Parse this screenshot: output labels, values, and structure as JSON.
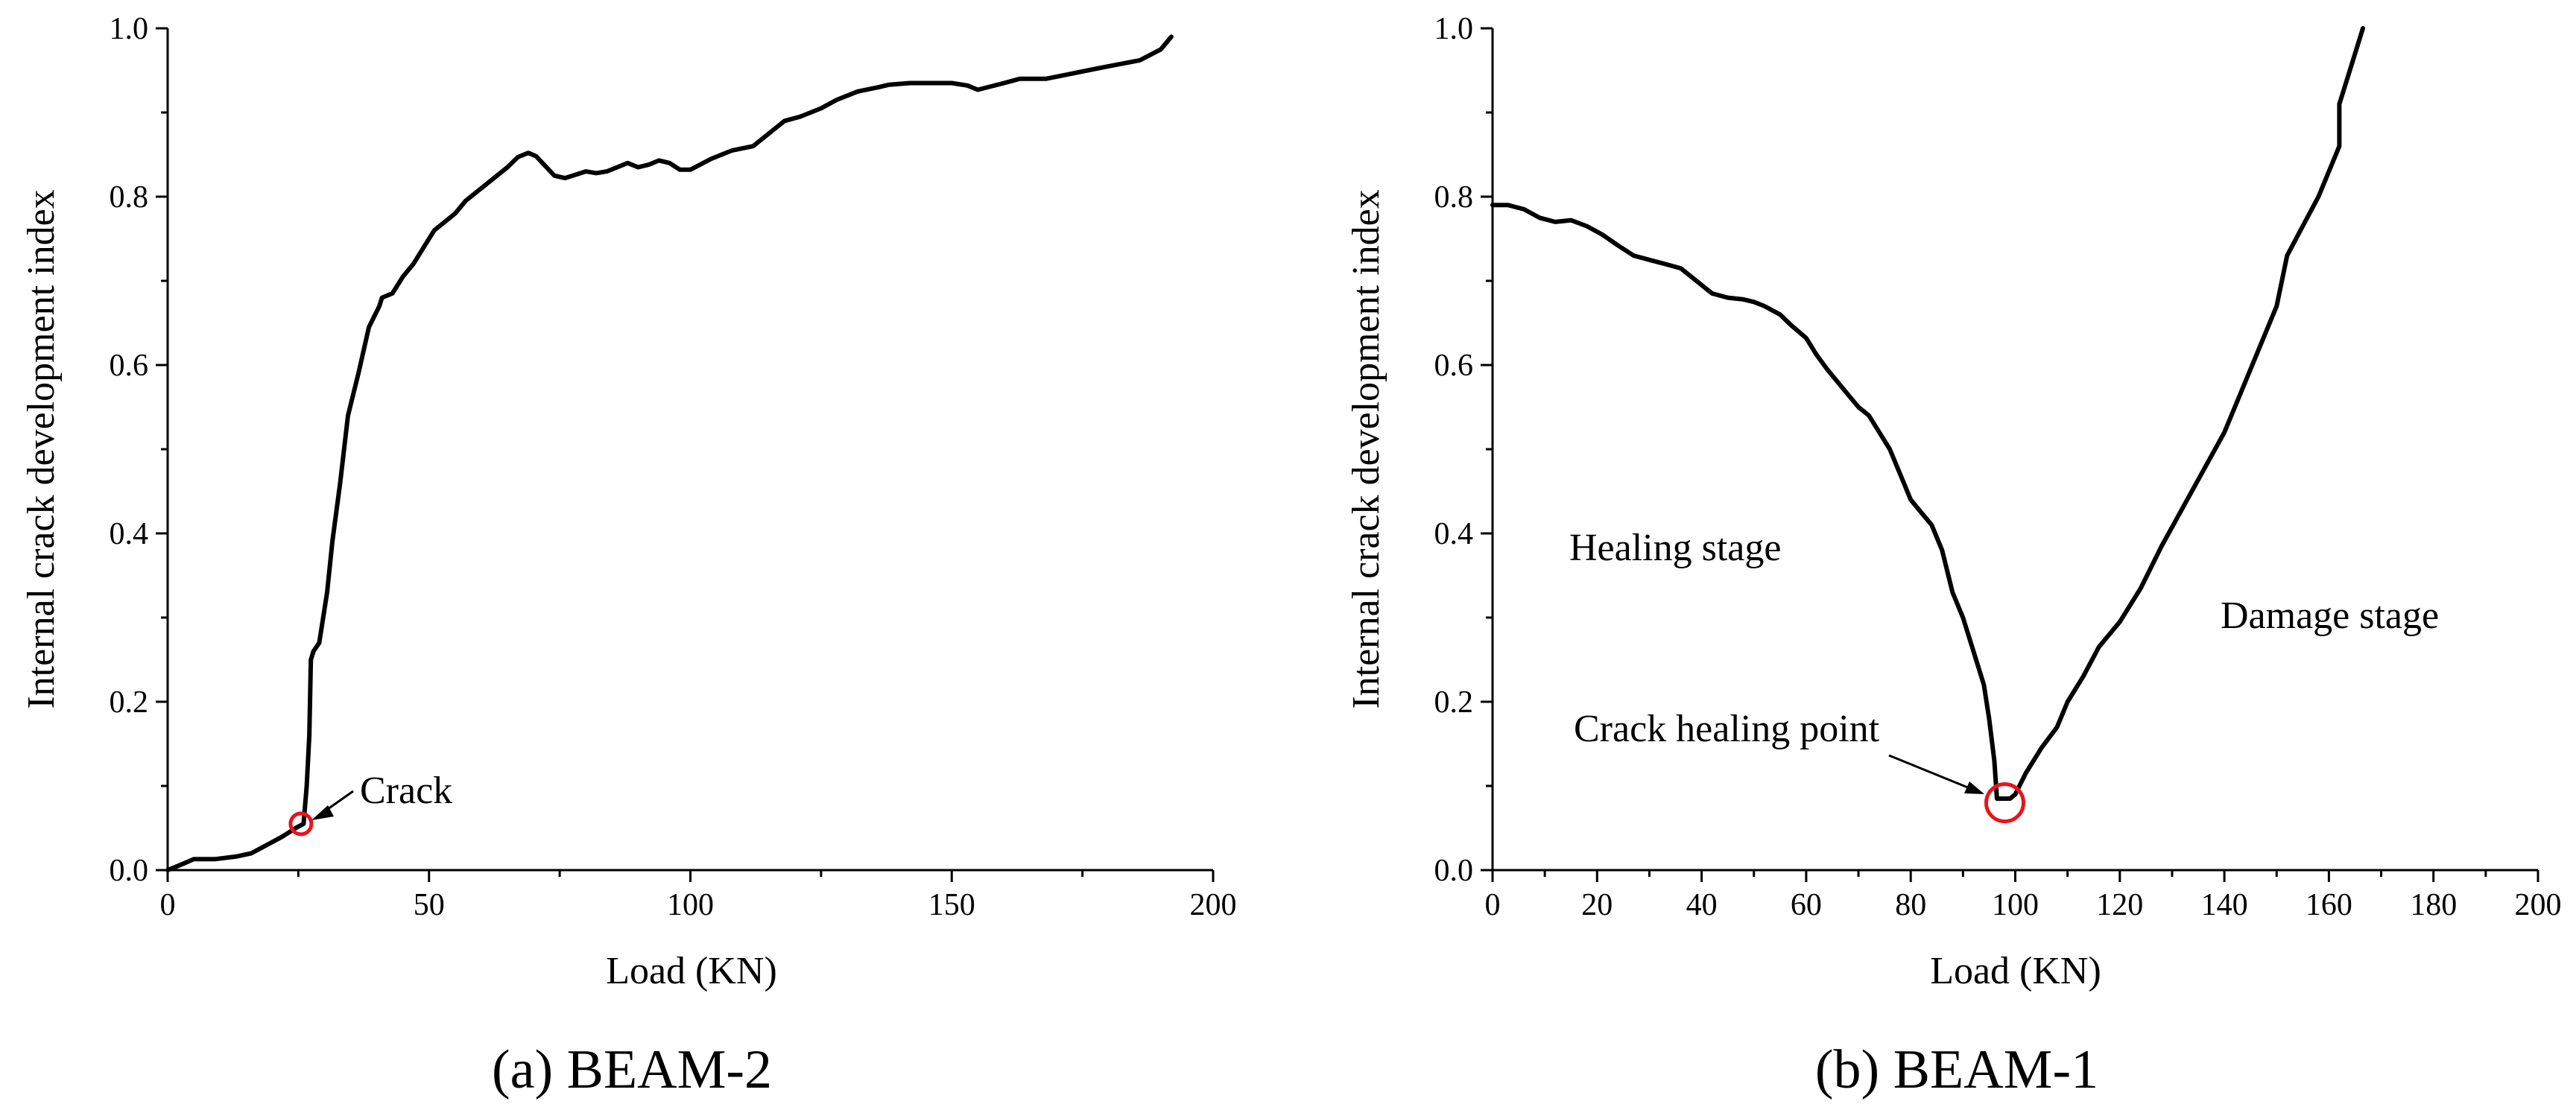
{
  "chart_data": [
    {
      "type": "line",
      "caption": "(a) BEAM-2",
      "xlabel": "Load (KN)",
      "ylabel": "Internal crack development index",
      "xlim": [
        0,
        200
      ],
      "ylim": [
        0,
        1.0
      ],
      "xticks": [
        "0",
        "50",
        "100",
        "150",
        "200"
      ],
      "yticks": [
        "0.0",
        "0.2",
        "0.4",
        "0.6",
        "0.8",
        "1.0"
      ],
      "grid": false,
      "series": [
        {
          "x": [
            0,
            2,
            5,
            9,
            13,
            16,
            19,
            22,
            24.5,
            26,
            26.6,
            27.1,
            27.4,
            27.9,
            29,
            30.5,
            31.5,
            33,
            34.5,
            36.5,
            38.5,
            40.5,
            41,
            43,
            45,
            47,
            49,
            51,
            53,
            55,
            57,
            59,
            61,
            63,
            65,
            67,
            69,
            70.5,
            72,
            74,
            76,
            78,
            80,
            82,
            84,
            86,
            88,
            90,
            92,
            94,
            96,
            98,
            100,
            104,
            108,
            112,
            115,
            118,
            121,
            125,
            128,
            132,
            136,
            138,
            142,
            146,
            150,
            153,
            155,
            160,
            163,
            168,
            172,
            176,
            180,
            186,
            190,
            192
          ],
          "y": [
            0.0,
            0.005,
            0.013,
            0.013,
            0.016,
            0.02,
            0.03,
            0.04,
            0.05,
            0.055,
            0.1,
            0.16,
            0.25,
            0.26,
            0.27,
            0.33,
            0.39,
            0.46,
            0.54,
            0.59,
            0.645,
            0.67,
            0.68,
            0.685,
            0.705,
            0.72,
            0.74,
            0.76,
            0.77,
            0.78,
            0.795,
            0.805,
            0.815,
            0.825,
            0.835,
            0.847,
            0.852,
            0.848,
            0.838,
            0.825,
            0.822,
            0.826,
            0.83,
            0.828,
            0.83,
            0.835,
            0.84,
            0.835,
            0.838,
            0.843,
            0.84,
            0.832,
            0.832,
            0.845,
            0.855,
            0.86,
            0.875,
            0.89,
            0.895,
            0.905,
            0.915,
            0.925,
            0.93,
            0.933,
            0.935,
            0.935,
            0.935,
            0.932,
            0.927,
            0.935,
            0.94,
            0.94,
            0.945,
            0.95,
            0.955,
            0.962,
            0.975,
            0.99
          ]
        }
      ],
      "marker": {
        "x": 25.5,
        "y": 0.055,
        "color": "#e8141b"
      },
      "annotations": [
        {
          "text": "Crack"
        }
      ]
    },
    {
      "type": "line",
      "caption": "(b) BEAM-1",
      "xlabel": "Load (KN)",
      "ylabel": "Internal crack development index",
      "xlim": [
        0,
        200
      ],
      "ylim": [
        0,
        1.0
      ],
      "xticks": [
        "0",
        "20",
        "40",
        "60",
        "80",
        "100",
        "120",
        "140",
        "160",
        "180",
        "200"
      ],
      "yticks": [
        "0.0",
        "0.2",
        "0.4",
        "0.6",
        "0.8",
        "1.0"
      ],
      "grid": false,
      "series": [
        {
          "x": [
            0,
            3,
            6,
            9,
            12,
            15,
            18,
            21,
            24,
            27,
            30,
            33,
            36,
            38,
            40,
            42,
            45,
            48,
            50,
            52,
            55,
            57,
            60,
            62,
            64,
            66,
            68,
            70,
            72,
            74,
            76,
            78,
            80,
            82,
            84,
            86,
            88,
            90,
            92,
            94,
            95,
            96,
            96.5,
            97,
            98,
            99,
            100,
            102,
            105,
            108,
            110,
            113,
            116,
            120,
            124,
            128,
            132,
            136,
            140,
            144,
            147,
            150,
            152,
            155,
            158,
            160,
            162,
            162,
            164,
            166.5
          ],
          "y": [
            0.79,
            0.79,
            0.785,
            0.775,
            0.77,
            0.772,
            0.765,
            0.755,
            0.742,
            0.73,
            0.725,
            0.72,
            0.715,
            0.705,
            0.695,
            0.685,
            0.68,
            0.678,
            0.675,
            0.67,
            0.66,
            0.648,
            0.632,
            0.612,
            0.595,
            0.58,
            0.565,
            0.55,
            0.54,
            0.52,
            0.5,
            0.47,
            0.44,
            0.425,
            0.41,
            0.38,
            0.33,
            0.3,
            0.26,
            0.22,
            0.18,
            0.13,
            0.085,
            0.085,
            0.085,
            0.085,
            0.09,
            0.115,
            0.145,
            0.17,
            0.2,
            0.23,
            0.265,
            0.295,
            0.335,
            0.385,
            0.43,
            0.475,
            0.52,
            0.58,
            0.625,
            0.67,
            0.73,
            0.765,
            0.8,
            0.83,
            0.86,
            0.91,
            0.95,
            1.0
          ]
        }
      ],
      "marker": {
        "x": 98,
        "y": 0.08,
        "color": "#e8141b"
      },
      "annotations": [
        {
          "text": "Crack healing point"
        },
        {
          "text": "Healing stage"
        },
        {
          "text": "Damage stage"
        }
      ]
    }
  ]
}
